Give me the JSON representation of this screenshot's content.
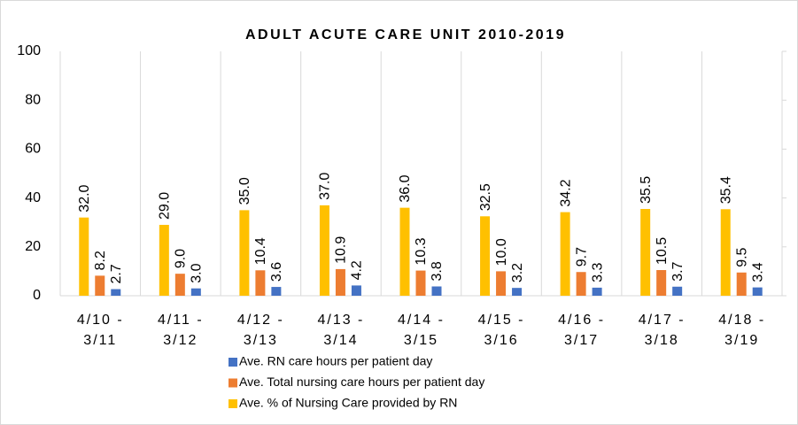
{
  "chart_data": {
    "type": "bar",
    "title": "ADULT ACUTE CARE UNIT 2010-2019",
    "categories": [
      "4/10-3/11",
      "4/11-3/12",
      "4/12-3/13",
      "4/13-3/14",
      "4/14-3/15",
      "4/15-3/16",
      "4/16-3/17",
      "4/17-3/18",
      "4/18-3/19"
    ],
    "series": [
      {
        "name": "Ave. RN care hours per patient day",
        "color": "#4472c4",
        "values": [
          2.7,
          3.0,
          3.6,
          4.2,
          3.8,
          3.2,
          3.3,
          3.7,
          3.4
        ],
        "value_labels": [
          "2.7",
          "3.0",
          "3.6",
          "4.2",
          "3.8",
          "3.2",
          "3.3",
          "3.7",
          "3.4"
        ]
      },
      {
        "name": "Ave. Total nursing care hours per patient day",
        "color": "#ed7d31",
        "values": [
          8.2,
          9.0,
          10.4,
          10.9,
          10.3,
          10.0,
          9.7,
          10.5,
          9.5
        ],
        "value_labels": [
          "8.2",
          "9.0",
          "10.4",
          "10.9",
          "10.3",
          "10.0",
          "9.7",
          "10.5",
          "9.5"
        ]
      },
      {
        "name": "Ave. % of Nursing Care provided by RN",
        "color": "#ffc000",
        "values": [
          32,
          29,
          35,
          37,
          36,
          32.5,
          34.2,
          35.5,
          35.4
        ],
        "value_labels": [
          "32.0",
          "29.0",
          "35.0",
          "37.0",
          "36.0",
          "32.5",
          "34.2",
          "35.5",
          "35.4"
        ]
      }
    ],
    "ylim": [
      0,
      100
    ],
    "yticks": [
      0,
      20,
      40,
      60,
      80,
      100
    ]
  }
}
